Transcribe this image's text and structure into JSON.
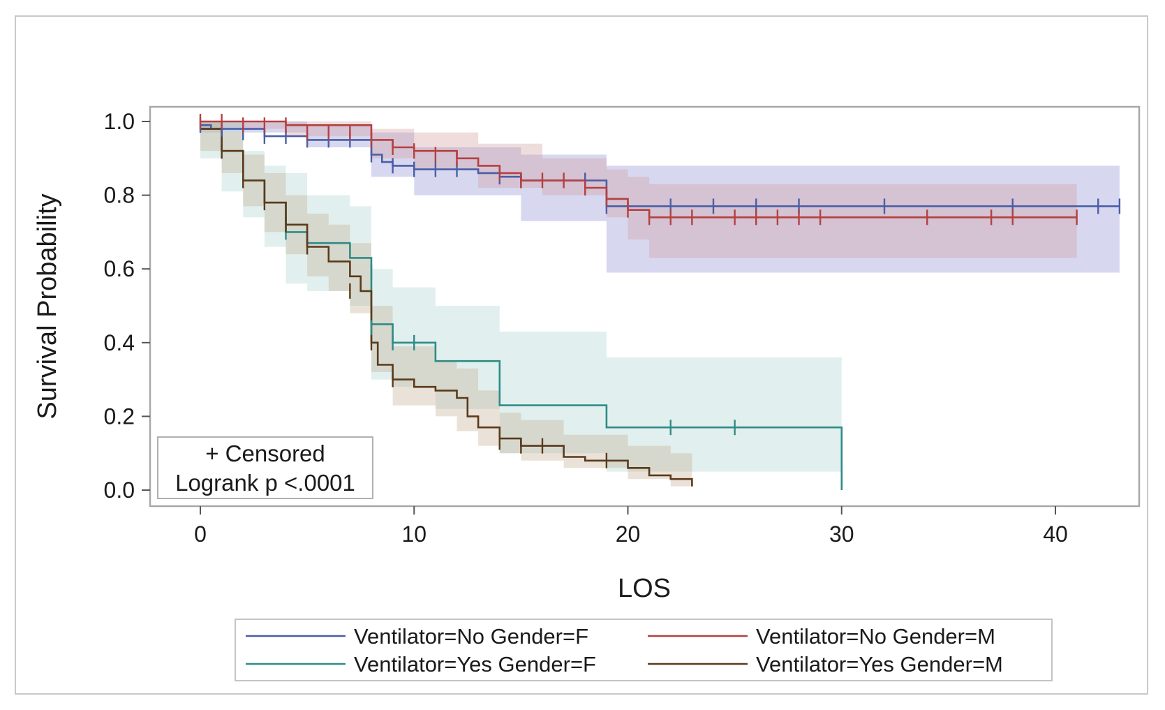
{
  "chart_data": {
    "type": "line",
    "subtype": "kaplan-meier survival curves with confidence bands",
    "xlabel": "LOS",
    "ylabel": "Survival Probability",
    "xlim": [
      -2.3,
      43.8
    ],
    "ylim": [
      -0.04,
      1.04
    ],
    "xticks": [
      0,
      10,
      20,
      30,
      40
    ],
    "yticks": [
      "0.0",
      "0.2",
      "0.4",
      "0.6",
      "0.8",
      "1.0"
    ],
    "inset": {
      "censor_note": "+ Censored",
      "test_note": "Logrank p <.0001"
    },
    "series": [
      {
        "name": "Ventilator=No Gender=F",
        "color": "#4a5ea8",
        "band_color": "#8c8fd0",
        "steps": [
          [
            0,
            0.99
          ],
          [
            0.5,
            0.98
          ],
          [
            3,
            0.96
          ],
          [
            5,
            0.95
          ],
          [
            8,
            0.91
          ],
          [
            8.5,
            0.89
          ],
          [
            9,
            0.88
          ],
          [
            10,
            0.87
          ],
          [
            13,
            0.86
          ],
          [
            14,
            0.85
          ],
          [
            15,
            0.84
          ],
          [
            19,
            0.77
          ],
          [
            43,
            0.77
          ]
        ],
        "censors": [
          [
            0,
            0.99
          ],
          [
            1,
            0.98
          ],
          [
            2,
            0.97
          ],
          [
            3,
            0.96
          ],
          [
            4,
            0.96
          ],
          [
            5,
            0.95
          ],
          [
            6,
            0.95
          ],
          [
            7,
            0.95
          ],
          [
            8,
            0.91
          ],
          [
            9,
            0.88
          ],
          [
            10,
            0.87
          ],
          [
            11,
            0.87
          ],
          [
            12,
            0.87
          ],
          [
            14,
            0.85
          ],
          [
            15,
            0.84
          ],
          [
            18,
            0.84
          ],
          [
            19,
            0.77
          ],
          [
            22,
            0.77
          ],
          [
            24,
            0.77
          ],
          [
            26,
            0.77
          ],
          [
            28,
            0.77
          ],
          [
            32,
            0.77
          ],
          [
            38,
            0.77
          ],
          [
            42,
            0.77
          ],
          [
            43,
            0.77
          ]
        ],
        "band": [
          [
            0,
            0.97,
            1.0
          ],
          [
            5,
            0.93,
            0.99
          ],
          [
            8,
            0.85,
            0.97
          ],
          [
            10,
            0.8,
            0.93
          ],
          [
            15,
            0.73,
            0.91
          ],
          [
            19,
            0.59,
            0.88
          ],
          [
            43,
            0.59,
            0.88
          ]
        ]
      },
      {
        "name": "Ventilator=No Gender=M",
        "color": "#b54040",
        "band_color": "#d29a9e",
        "steps": [
          [
            0,
            1.0
          ],
          [
            4,
            0.99
          ],
          [
            8,
            0.95
          ],
          [
            9,
            0.93
          ],
          [
            10,
            0.92
          ],
          [
            12,
            0.9
          ],
          [
            13,
            0.88
          ],
          [
            14,
            0.86
          ],
          [
            15,
            0.84
          ],
          [
            18,
            0.82
          ],
          [
            19,
            0.79
          ],
          [
            20,
            0.76
          ],
          [
            21,
            0.74
          ],
          [
            41,
            0.74
          ]
        ],
        "censors": [
          [
            0,
            1.0
          ],
          [
            1,
            1.0
          ],
          [
            2,
            0.99
          ],
          [
            3,
            0.99
          ],
          [
            4,
            0.99
          ],
          [
            5,
            0.97
          ],
          [
            6,
            0.97
          ],
          [
            7,
            0.97
          ],
          [
            8,
            0.95
          ],
          [
            9,
            0.93
          ],
          [
            10,
            0.92
          ],
          [
            11,
            0.91
          ],
          [
            12,
            0.9
          ],
          [
            14,
            0.86
          ],
          [
            15,
            0.84
          ],
          [
            16,
            0.84
          ],
          [
            17,
            0.84
          ],
          [
            18,
            0.82
          ],
          [
            19,
            0.79
          ],
          [
            20,
            0.76
          ],
          [
            21,
            0.74
          ],
          [
            22,
            0.74
          ],
          [
            23,
            0.74
          ],
          [
            25,
            0.74
          ],
          [
            26,
            0.74
          ],
          [
            27,
            0.74
          ],
          [
            28,
            0.74
          ],
          [
            29,
            0.74
          ],
          [
            34,
            0.74
          ],
          [
            37,
            0.74
          ],
          [
            38,
            0.74
          ],
          [
            41,
            0.74
          ]
        ],
        "band": [
          [
            0,
            0.98,
            1.0
          ],
          [
            4,
            0.96,
            1.0
          ],
          [
            8,
            0.9,
            0.98
          ],
          [
            10,
            0.87,
            0.97
          ],
          [
            13,
            0.82,
            0.94
          ],
          [
            16,
            0.8,
            0.9
          ],
          [
            19,
            0.74,
            0.87
          ],
          [
            20,
            0.68,
            0.85
          ],
          [
            21,
            0.63,
            0.83
          ],
          [
            41,
            0.63,
            0.83
          ]
        ]
      },
      {
        "name": "Ventilator=Yes Gender=F",
        "color": "#2e8b87",
        "band_color": "#a9d3cf",
        "steps": [
          [
            0,
            0.98
          ],
          [
            1,
            0.92
          ],
          [
            2,
            0.84
          ],
          [
            3,
            0.78
          ],
          [
            4,
            0.7
          ],
          [
            5,
            0.67
          ],
          [
            7,
            0.63
          ],
          [
            8,
            0.45
          ],
          [
            9,
            0.4
          ],
          [
            11,
            0.35
          ],
          [
            14,
            0.23
          ],
          [
            19,
            0.17
          ],
          [
            30,
            0.17
          ],
          [
            30,
            0.0
          ]
        ],
        "censors": [
          [
            1,
            0.92
          ],
          [
            4,
            0.7
          ],
          [
            8,
            0.59
          ],
          [
            8,
            0.44
          ],
          [
            9,
            0.4
          ],
          [
            10,
            0.4
          ],
          [
            22,
            0.17
          ],
          [
            25,
            0.17
          ]
        ],
        "band": [
          [
            0,
            0.9,
            1.0
          ],
          [
            1,
            0.81,
            1.0
          ],
          [
            2,
            0.74,
            0.92
          ],
          [
            3,
            0.66,
            0.88
          ],
          [
            4,
            0.56,
            0.86
          ],
          [
            5,
            0.54,
            0.8
          ],
          [
            7,
            0.5,
            0.77
          ],
          [
            8,
            0.3,
            0.6
          ],
          [
            9,
            0.28,
            0.55
          ],
          [
            11,
            0.22,
            0.5
          ],
          [
            14,
            0.1,
            0.43
          ],
          [
            19,
            0.05,
            0.36
          ],
          [
            30,
            0.05,
            0.36
          ]
        ]
      },
      {
        "name": "Ventilator=Yes Gender=M",
        "color": "#5a3a1a",
        "band_color": "#c2ad8e",
        "steps": [
          [
            0,
            0.98
          ],
          [
            1,
            0.92
          ],
          [
            2,
            0.84
          ],
          [
            3,
            0.78
          ],
          [
            4,
            0.72
          ],
          [
            5,
            0.66
          ],
          [
            6,
            0.62
          ],
          [
            7,
            0.58
          ],
          [
            7.5,
            0.54
          ],
          [
            8,
            0.4
          ],
          [
            8.3,
            0.34
          ],
          [
            9,
            0.3
          ],
          [
            10,
            0.28
          ],
          [
            11,
            0.27
          ],
          [
            12,
            0.25
          ],
          [
            12.5,
            0.2
          ],
          [
            13,
            0.17
          ],
          [
            14,
            0.14
          ],
          [
            15,
            0.12
          ],
          [
            17,
            0.09
          ],
          [
            18,
            0.08
          ],
          [
            20,
            0.06
          ],
          [
            21,
            0.04
          ],
          [
            22,
            0.03
          ],
          [
            23,
            0.01
          ]
        ],
        "censors": [
          [
            1,
            0.92
          ],
          [
            2,
            0.84
          ],
          [
            3,
            0.78
          ],
          [
            4,
            0.72
          ],
          [
            5,
            0.66
          ],
          [
            7,
            0.54
          ],
          [
            8,
            0.4
          ],
          [
            9,
            0.3
          ],
          [
            14,
            0.13
          ],
          [
            15,
            0.12
          ],
          [
            16,
            0.12
          ],
          [
            19,
            0.08
          ]
        ],
        "band": [
          [
            0,
            0.92,
            1.0
          ],
          [
            1,
            0.86,
            0.97
          ],
          [
            2,
            0.77,
            0.91
          ],
          [
            3,
            0.7,
            0.86
          ],
          [
            4,
            0.64,
            0.8
          ],
          [
            5,
            0.58,
            0.75
          ],
          [
            6,
            0.54,
            0.72
          ],
          [
            7,
            0.48,
            0.67
          ],
          [
            8,
            0.32,
            0.5
          ],
          [
            9,
            0.23,
            0.39
          ],
          [
            11,
            0.2,
            0.35
          ],
          [
            12,
            0.16,
            0.33
          ],
          [
            13,
            0.12,
            0.27
          ],
          [
            14,
            0.1,
            0.21
          ],
          [
            15,
            0.08,
            0.19
          ],
          [
            17,
            0.06,
            0.15
          ],
          [
            20,
            0.03,
            0.12
          ],
          [
            22,
            0.01,
            0.1
          ],
          [
            23,
            0.0,
            0.09
          ]
        ]
      }
    ]
  }
}
